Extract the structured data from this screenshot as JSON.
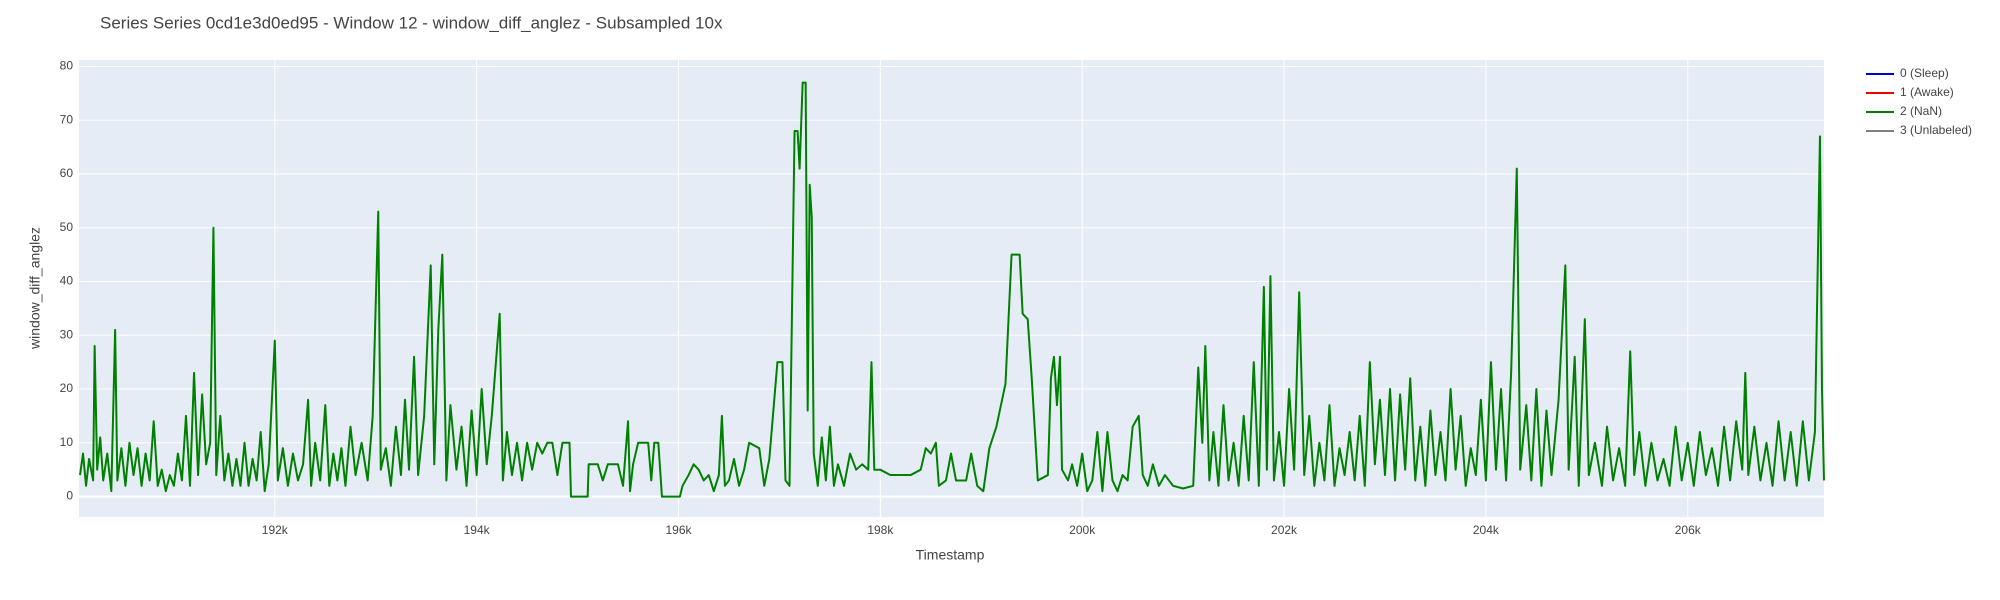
{
  "chart_data": {
    "type": "line",
    "title": "Series Series 0cd1e3d0ed95 - Window 12 - window_diff_anglez - Subsampled 10x",
    "x_label": "Timestamp",
    "y_label": "window_diff_anglez",
    "xlim": [
      190060,
      207350
    ],
    "ylim": [
      -3.8,
      81.2
    ],
    "xticks": [
      {
        "value": 192000,
        "label": "192k"
      },
      {
        "value": 194000,
        "label": "194k"
      },
      {
        "value": 196000,
        "label": "196k"
      },
      {
        "value": 198000,
        "label": "198k"
      },
      {
        "value": 200000,
        "label": "200k"
      },
      {
        "value": 202000,
        "label": "202k"
      },
      {
        "value": 204000,
        "label": "204k"
      },
      {
        "value": 206000,
        "label": "206k"
      }
    ],
    "yticks": [
      0,
      10,
      20,
      30,
      40,
      50,
      60,
      70,
      80
    ],
    "grid": true,
    "legend": "right",
    "series": [
      {
        "name": "0 (Sleep)",
        "color": "#0000cc",
        "x": [],
        "values": []
      },
      {
        "name": "1 (Awake)",
        "color": "#ee0000",
        "x": [],
        "values": []
      },
      {
        "name": "2 (NaN)",
        "color": "#008000",
        "x": [
          190070,
          190100,
          190130,
          190160,
          190200,
          190215,
          190240,
          190270,
          190300,
          190340,
          190380,
          190418,
          190440,
          190480,
          190520,
          190560,
          190600,
          190640,
          190680,
          190720,
          190760,
          190800,
          190840,
          190880,
          190920,
          190960,
          191000,
          191040,
          191080,
          191120,
          191160,
          191200,
          191240,
          191280,
          191320,
          191360,
          191392,
          191420,
          191460,
          191500,
          191540,
          191580,
          191620,
          191660,
          191700,
          191740,
          191780,
          191820,
          191860,
          191900,
          191940,
          192000,
          192030,
          192080,
          192130,
          192180,
          192230,
          192280,
          192330,
          192360,
          192400,
          192450,
          192500,
          192540,
          192580,
          192620,
          192660,
          192700,
          192750,
          192800,
          192860,
          192920,
          192970,
          193025,
          193050,
          193100,
          193150,
          193200,
          193250,
          193290,
          193330,
          193380,
          193420,
          193480,
          193545,
          193580,
          193620,
          193660,
          193700,
          193740,
          193800,
          193850,
          193900,
          193950,
          194000,
          194050,
          194100,
          194150,
          194228,
          194260,
          194300,
          194350,
          194400,
          194450,
          194500,
          194550,
          194600,
          194650,
          194700,
          194750,
          194800,
          194850,
          194920,
          194935,
          195100,
          195110,
          195200,
          195250,
          195300,
          195400,
          195450,
          195500,
          195520,
          195550,
          195600,
          195700,
          195730,
          195760,
          195800,
          195836,
          196014,
          196040,
          196100,
          196150,
          196200,
          196250,
          196300,
          196350,
          196400,
          196430,
          196460,
          196500,
          196550,
          196600,
          196650,
          196700,
          196800,
          196850,
          196900,
          196980,
          197030,
          197060,
          197100,
          197150,
          197180,
          197200,
          197230,
          197260,
          197280,
          197300,
          197320,
          197340,
          197380,
          197420,
          197460,
          197500,
          197540,
          197580,
          197640,
          197700,
          197760,
          197820,
          197880,
          197912,
          197940,
          198000,
          198100,
          198200,
          198300,
          198400,
          198450,
          198500,
          198550,
          198580,
          198650,
          198700,
          198750,
          198850,
          198900,
          198960,
          199020,
          199080,
          199150,
          199240,
          199300,
          199380,
          199410,
          199460,
          199500,
          199560,
          199660,
          199690,
          199720,
          199750,
          199780,
          199800,
          199860,
          199900,
          199950,
          200000,
          200050,
          200100,
          200150,
          200200,
          200250,
          200300,
          200350,
          200400,
          200450,
          200500,
          200560,
          200600,
          200650,
          200700,
          200760,
          200820,
          200900,
          201000,
          201100,
          201150,
          201190,
          201220,
          201260,
          201300,
          201350,
          201400,
          201450,
          201500,
          201550,
          201600,
          201650,
          201700,
          201750,
          201800,
          201830,
          201865,
          201900,
          201950,
          202000,
          202050,
          202100,
          202150,
          202200,
          202250,
          202300,
          202350,
          202400,
          202450,
          202500,
          202550,
          202600,
          202650,
          202700,
          202750,
          202800,
          202850,
          202900,
          202950,
          203000,
          203050,
          203100,
          203150,
          203200,
          203250,
          203300,
          203350,
          203400,
          203450,
          203500,
          203550,
          203600,
          203650,
          203700,
          203750,
          203800,
          203850,
          203900,
          203950,
          204000,
          204050,
          204100,
          204150,
          204200,
          204250,
          204306,
          204340,
          204400,
          204450,
          204500,
          204550,
          204600,
          204650,
          204720,
          204787,
          204820,
          204880,
          204920,
          204980,
          205020,
          205080,
          205150,
          205200,
          205260,
          205320,
          205380,
          205430,
          205470,
          205520,
          205580,
          205640,
          205700,
          205760,
          205820,
          205880,
          205940,
          206000,
          206060,
          206120,
          206180,
          206240,
          206300,
          206360,
          206420,
          206480,
          206540,
          206570,
          206600,
          206660,
          206720,
          206780,
          206840,
          206900,
          206960,
          207020,
          207080,
          207140,
          207200,
          207260,
          207290,
          207310,
          207330,
          207350
        ],
        "values": [
          4,
          8,
          2,
          7,
          3,
          28,
          5,
          11,
          3,
          8,
          1,
          31,
          3,
          9,
          2,
          10,
          4,
          9,
          2,
          8,
          3,
          14,
          2,
          5,
          1,
          4,
          2,
          8,
          3,
          15,
          2,
          23,
          4,
          19,
          6,
          10,
          50,
          4,
          15,
          3,
          8,
          2,
          7,
          2,
          10,
          2,
          7,
          3,
          12,
          1,
          6,
          29,
          3,
          9,
          2,
          8,
          3,
          6,
          18,
          2,
          10,
          3,
          17,
          2,
          8,
          3,
          9,
          2,
          13,
          4,
          10,
          3,
          15,
          53,
          5,
          9,
          2,
          13,
          4,
          18,
          5,
          26,
          4,
          15,
          43,
          6,
          31,
          45,
          3,
          17,
          5,
          13,
          2,
          16,
          4,
          20,
          6,
          15,
          34,
          3,
          12,
          4,
          10,
          3,
          10,
          5,
          10,
          8,
          10,
          10,
          4,
          10,
          10,
          0,
          0,
          6,
          6,
          3,
          6,
          6,
          2,
          14,
          1,
          6,
          10,
          10,
          3,
          10,
          10,
          0,
          0,
          2,
          4,
          6,
          5,
          3,
          4,
          1,
          4,
          15,
          2,
          3,
          7,
          2,
          5,
          10,
          9,
          2,
          7,
          25,
          25,
          3,
          2,
          68,
          68,
          61,
          77,
          77,
          16,
          58,
          52,
          8,
          2,
          11,
          3,
          13,
          2,
          6,
          2,
          8,
          5,
          6,
          5,
          25,
          5,
          5,
          4,
          4,
          4,
          5,
          9,
          8,
          10,
          2,
          3,
          8,
          3,
          3,
          8,
          2,
          1,
          9,
          13,
          21,
          45,
          45,
          34,
          33,
          22,
          3,
          4,
          22,
          26,
          17,
          26,
          5,
          3,
          6,
          2,
          8,
          1,
          3,
          12,
          1,
          12,
          3,
          1,
          4,
          3,
          13,
          15,
          4,
          2,
          6,
          2,
          4,
          2,
          1.5,
          2,
          24,
          10,
          28,
          3,
          12,
          2,
          17,
          3,
          10,
          2,
          15,
          3,
          25,
          2,
          39,
          5,
          41,
          3,
          12,
          2,
          20,
          5,
          38,
          4,
          15,
          2,
          10,
          3,
          17,
          2,
          9,
          4,
          12,
          3,
          15,
          2,
          25,
          6,
          18,
          4,
          20,
          3,
          19,
          5,
          22,
          3,
          13,
          2,
          16,
          4,
          12,
          3,
          20,
          5,
          15,
          2,
          9,
          4,
          18,
          3,
          25,
          5,
          20,
          3,
          23,
          61,
          5,
          17,
          3,
          20,
          2,
          16,
          4,
          18,
          43,
          5,
          26,
          2,
          33,
          4,
          10,
          2,
          13,
          3,
          9,
          2,
          27,
          4,
          12,
          2,
          10,
          3,
          7,
          2,
          13,
          3,
          10,
          2,
          12,
          4,
          9,
          2,
          13,
          3,
          14,
          5,
          23,
          4,
          13,
          3,
          10,
          2,
          14,
          3,
          12,
          2,
          14,
          3,
          12,
          45,
          67,
          20,
          3
        ]
      },
      {
        "name": "3 (Unlabeled)",
        "color": "#808080",
        "x": [],
        "values": []
      }
    ]
  }
}
